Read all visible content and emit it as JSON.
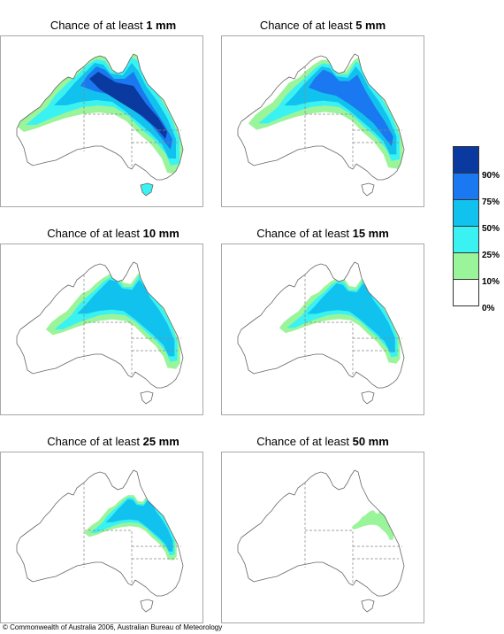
{
  "colors": {
    "c10": "#9af59a",
    "c25": "#3af2f2",
    "c50": "#12c2ee",
    "c75": "#1a78f0",
    "c90": "#0a3aa0",
    "outline": "#666666",
    "border_line": "#888888"
  },
  "panels": [
    {
      "prefix": "Chance of at least ",
      "amount": "1 mm",
      "levels": [
        "c10",
        "c25",
        "c50",
        "c75",
        "c90"
      ]
    },
    {
      "prefix": "Chance of at least ",
      "amount": "5 mm",
      "levels": [
        "c10",
        "c25",
        "c50",
        "c75"
      ]
    },
    {
      "prefix": "Chance of at least ",
      "amount": "10 mm",
      "levels": [
        "c10",
        "c25",
        "c50"
      ]
    },
    {
      "prefix": "Chance of at least ",
      "amount": "15 mm",
      "levels": [
        "c10",
        "c25",
        "c50"
      ]
    },
    {
      "prefix": "Chance of at least ",
      "amount": "25 mm",
      "levels": [
        "c10",
        "c25",
        "c50"
      ]
    },
    {
      "prefix": "Chance of at least ",
      "amount": "50 mm",
      "levels": [
        "c10"
      ]
    }
  ],
  "legend": {
    "labels": [
      "90%",
      "75%",
      "50%",
      "25%",
      "10%",
      "0%"
    ],
    "swatches": [
      "#0a3aa0",
      "#1a78f0",
      "#12c2ee",
      "#3af2f2",
      "#9af59a",
      "#ffffff"
    ]
  },
  "copyright": "© Commonwealth of Australia 2006, Australian Bureau of Meteorology"
}
